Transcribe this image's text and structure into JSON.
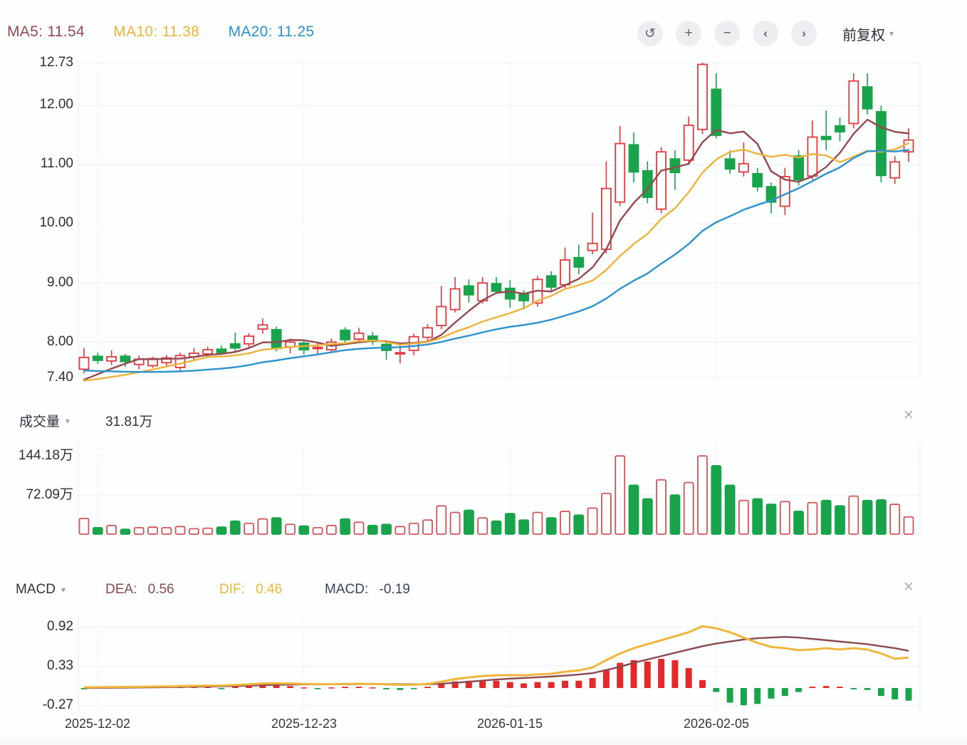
{
  "toolbar": {
    "ma5_label": "MA5: 11.54",
    "ma10_label": "MA10: 11.38",
    "ma20_label": "MA20: 11.25",
    "buttons": [
      {
        "name": "undo",
        "glyph": "↺"
      },
      {
        "name": "zoom-in",
        "glyph": "+"
      },
      {
        "name": "zoom-out",
        "glyph": "−"
      },
      {
        "name": "pan-left",
        "glyph": "‹"
      },
      {
        "name": "pan-right",
        "glyph": "›"
      }
    ],
    "adjust_label": "前复权",
    "caret_glyph": "▾"
  },
  "axis": {
    "price_ticks": [
      "12.73",
      "12.00",
      "11.00",
      "10.00",
      "9.00",
      "8.00",
      "7.40"
    ],
    "volume_ticks": [
      "144.18万",
      "72.09万"
    ],
    "macd_ticks": [
      "0.92",
      "0.33",
      "-0.27"
    ],
    "date_labels": [
      "2025-12-02",
      "2025-12-23",
      "2026-01-15",
      "2026-02-05"
    ]
  },
  "volume_panel": {
    "title": "成交量",
    "current_value": "31.81万",
    "close_glyph": "✕",
    "caret_glyph": "▾"
  },
  "macd_panel": {
    "title": "MACD",
    "dea_label": "DEA:",
    "dea_value": "0.56",
    "dif_label": "DIF:",
    "dif_value": "0.46",
    "macd_label": "MACD:",
    "macd_value": "-0.19",
    "close_glyph": "✕",
    "caret_glyph": "▾"
  },
  "colors": {
    "up": "#e0393e",
    "down": "#19a44b",
    "volume_up_stroke": "#d05558",
    "macd_up": "#e22a2a",
    "macd_down": "#19a44b",
    "ma5": "#944a50",
    "ma10": "#eeb33c",
    "ma20": "#2b93cc",
    "dif": "#f0b63a",
    "dea": "#8a4a50",
    "grid": "#edf0f3",
    "grid_strong": "#e7ebee",
    "vgrid": "#f1f4f6",
    "text_dark": "#2b2f36",
    "text_gray": "#9aa0a6",
    "macd_value_color": "#3a4456"
  },
  "chart_data": {
    "type": "candlestick",
    "x_labels": [
      "2025-12-02",
      "2025-12-23",
      "2026-01-15",
      "2026-02-05"
    ],
    "x_label_indices": [
      1,
      16,
      31,
      46
    ],
    "panels": {
      "price": {
        "ylim": [
          7.4,
          12.73
        ],
        "yticks": [
          12.73,
          12.0,
          11.0,
          10.0,
          9.0,
          8.0,
          7.4
        ],
        "ma_periods": [
          5,
          10,
          20
        ],
        "ma_current": {
          "ma5": 11.54,
          "ma10": 11.38,
          "ma20": 11.25
        },
        "ma_prehistory_closes": [
          7.95,
          7.9,
          7.85,
          7.8,
          7.78,
          7.72,
          7.68,
          7.62,
          7.58,
          7.52,
          7.48,
          7.42,
          7.38,
          7.32,
          7.28,
          7.25,
          7.22,
          7.28,
          7.25,
          7.32
        ],
        "candles": [
          [
            7.54,
            7.9,
            7.47,
            7.74
          ],
          [
            7.76,
            7.82,
            7.63,
            7.69
          ],
          [
            7.68,
            7.86,
            7.61,
            7.75
          ],
          [
            7.76,
            7.8,
            7.58,
            7.67
          ],
          [
            7.62,
            7.77,
            7.54,
            7.71
          ],
          [
            7.6,
            7.75,
            7.56,
            7.72
          ],
          [
            7.65,
            7.78,
            7.6,
            7.73
          ],
          [
            7.57,
            7.82,
            7.52,
            7.77
          ],
          [
            7.75,
            7.9,
            7.68,
            7.81
          ],
          [
            7.8,
            7.92,
            7.74,
            7.87
          ],
          [
            7.88,
            7.94,
            7.78,
            7.81
          ],
          [
            7.97,
            8.16,
            7.84,
            7.9
          ],
          [
            7.97,
            8.15,
            7.9,
            8.1
          ],
          [
            8.22,
            8.4,
            8.14,
            8.29
          ],
          [
            8.21,
            8.26,
            7.84,
            7.89
          ],
          [
            7.92,
            8.06,
            7.81,
            8.0
          ],
          [
            7.98,
            8.04,
            7.79,
            7.87
          ],
          [
            7.89,
            7.98,
            7.8,
            7.91
          ],
          [
            7.87,
            8.06,
            7.81,
            8.0
          ],
          [
            8.2,
            8.25,
            7.99,
            8.04
          ],
          [
            8.05,
            8.24,
            8.0,
            8.15
          ],
          [
            8.1,
            8.17,
            7.95,
            8.01
          ],
          [
            7.96,
            8.01,
            7.7,
            7.86
          ],
          [
            7.8,
            7.95,
            7.64,
            7.82
          ],
          [
            7.86,
            8.14,
            7.78,
            8.09
          ],
          [
            8.08,
            8.3,
            8.02,
            8.24
          ],
          [
            8.28,
            8.95,
            8.22,
            8.6
          ],
          [
            8.55,
            9.1,
            8.5,
            8.9
          ],
          [
            8.95,
            9.06,
            8.67,
            8.8
          ],
          [
            8.7,
            9.1,
            8.65,
            9.0
          ],
          [
            8.99,
            9.1,
            8.82,
            8.86
          ],
          [
            8.91,
            9.05,
            8.58,
            8.73
          ],
          [
            8.82,
            8.88,
            8.55,
            8.7
          ],
          [
            8.66,
            9.12,
            8.6,
            9.06
          ],
          [
            9.12,
            9.2,
            8.85,
            8.93
          ],
          [
            8.97,
            9.6,
            8.9,
            9.39
          ],
          [
            9.43,
            9.65,
            9.15,
            9.27
          ],
          [
            9.55,
            10.19,
            9.49,
            9.67
          ],
          [
            9.57,
            11.06,
            9.5,
            10.6
          ],
          [
            10.37,
            11.66,
            10.3,
            11.36
          ],
          [
            11.34,
            11.55,
            10.7,
            10.88
          ],
          [
            10.9,
            11.06,
            10.35,
            10.45
          ],
          [
            10.25,
            11.3,
            10.18,
            11.22
          ],
          [
            11.1,
            11.25,
            10.58,
            10.87
          ],
          [
            11.08,
            11.82,
            11.0,
            11.67
          ],
          [
            11.6,
            12.73,
            11.52,
            12.7
          ],
          [
            12.28,
            12.55,
            11.45,
            11.5
          ],
          [
            11.1,
            11.25,
            10.85,
            10.93
          ],
          [
            10.88,
            11.38,
            10.8,
            11.02
          ],
          [
            10.85,
            10.95,
            10.55,
            10.63
          ],
          [
            10.63,
            10.7,
            10.18,
            10.37
          ],
          [
            10.3,
            10.95,
            10.15,
            10.8
          ],
          [
            11.15,
            11.25,
            10.65,
            10.75
          ],
          [
            10.81,
            11.75,
            10.75,
            11.47
          ],
          [
            11.48,
            11.92,
            11.25,
            11.43
          ],
          [
            11.66,
            11.8,
            11.4,
            11.56
          ],
          [
            11.7,
            12.55,
            11.62,
            12.42
          ],
          [
            12.32,
            12.55,
            11.85,
            11.95
          ],
          [
            11.9,
            12.0,
            10.7,
            10.82
          ],
          [
            10.78,
            11.15,
            10.68,
            11.05
          ],
          [
            11.22,
            11.62,
            11.05,
            11.42
          ]
        ]
      },
      "volume": {
        "unit": "万",
        "yticks": [
          144.18,
          72.09
        ],
        "current": 31.81,
        "values": [
          29,
          12,
          16,
          9,
          12,
          13,
          12,
          14,
          10,
          11,
          13,
          24,
          20,
          28,
          30,
          18,
          15,
          12,
          16,
          28,
          22,
          16,
          18,
          14,
          20,
          26,
          52,
          40,
          44,
          30,
          24,
          38,
          26,
          40,
          30,
          42,
          35,
          48,
          75,
          144,
          90,
          65,
          100,
          72,
          95,
          144,
          126,
          90,
          62,
          65,
          55,
          60,
          42,
          58,
          62,
          52,
          70,
          62,
          63,
          55,
          31.81
        ]
      },
      "macd": {
        "yticks": [
          0.92,
          0.33,
          -0.27
        ],
        "current": {
          "dea": 0.56,
          "dif": 0.46,
          "macd": -0.19
        },
        "dif": [
          0.01,
          0.012,
          0.015,
          0.016,
          0.018,
          0.021,
          0.024,
          0.028,
          0.032,
          0.036,
          0.038,
          0.045,
          0.055,
          0.068,
          0.07,
          0.068,
          0.062,
          0.058,
          0.058,
          0.062,
          0.064,
          0.062,
          0.055,
          0.048,
          0.05,
          0.062,
          0.095,
          0.135,
          0.16,
          0.18,
          0.192,
          0.195,
          0.19,
          0.205,
          0.215,
          0.245,
          0.265,
          0.31,
          0.42,
          0.52,
          0.6,
          0.66,
          0.72,
          0.78,
          0.84,
          0.93,
          0.9,
          0.84,
          0.76,
          0.68,
          0.62,
          0.6,
          0.57,
          0.58,
          0.6,
          0.58,
          0.6,
          0.58,
          0.52,
          0.44,
          0.46
        ],
        "dea": [
          0.0,
          0.002,
          0.004,
          0.006,
          0.008,
          0.01,
          0.013,
          0.016,
          0.019,
          0.022,
          0.026,
          0.03,
          0.035,
          0.042,
          0.048,
          0.052,
          0.054,
          0.055,
          0.056,
          0.057,
          0.059,
          0.06,
          0.059,
          0.057,
          0.056,
          0.057,
          0.065,
          0.079,
          0.095,
          0.112,
          0.128,
          0.141,
          0.151,
          0.162,
          0.173,
          0.187,
          0.203,
          0.224,
          0.27,
          0.32,
          0.38,
          0.43,
          0.48,
          0.53,
          0.58,
          0.63,
          0.67,
          0.7,
          0.73,
          0.75,
          0.76,
          0.77,
          0.76,
          0.74,
          0.72,
          0.7,
          0.68,
          0.66,
          0.63,
          0.6,
          0.56
        ],
        "histogram": [
          -0.02,
          0.02,
          0.02,
          0.01,
          0.02,
          0.02,
          0.02,
          0.02,
          0.02,
          0.03,
          -0.01,
          0.03,
          0.04,
          0.05,
          0.04,
          0.03,
          0.01,
          -0.01,
          0.01,
          0.02,
          0.02,
          0.01,
          -0.02,
          -0.03,
          -0.01,
          0.02,
          0.06,
          0.1,
          0.11,
          0.12,
          0.11,
          0.09,
          0.07,
          0.09,
          0.09,
          0.11,
          0.11,
          0.15,
          0.28,
          0.38,
          0.42,
          0.4,
          0.44,
          0.42,
          0.3,
          0.12,
          -0.06,
          -0.22,
          -0.26,
          -0.24,
          -0.16,
          -0.12,
          -0.06,
          0.02,
          0.03,
          0.02,
          -0.02,
          -0.03,
          -0.12,
          -0.17,
          -0.19
        ]
      }
    }
  }
}
